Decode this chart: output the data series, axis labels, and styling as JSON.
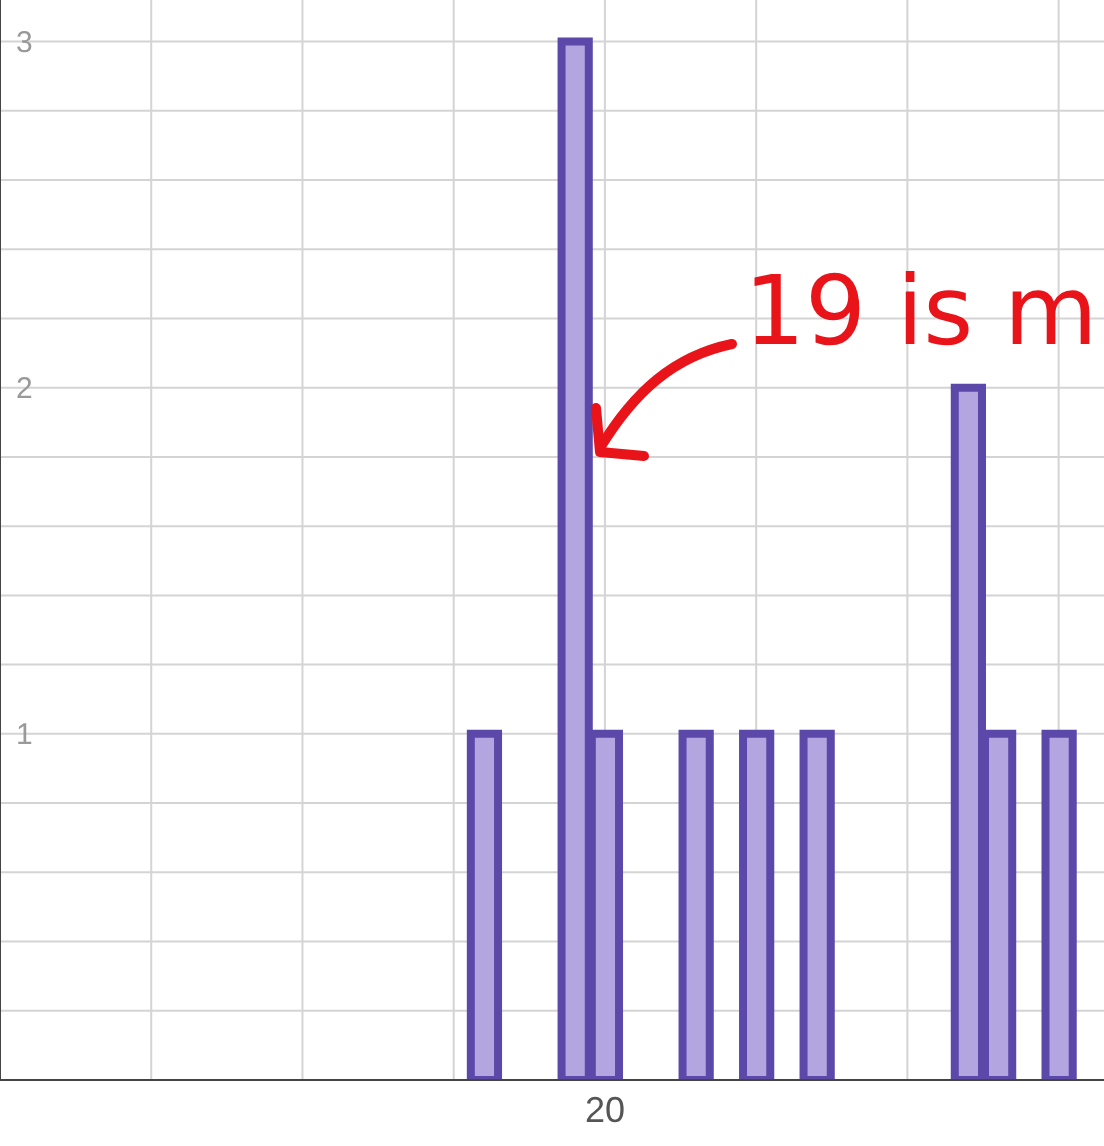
{
  "chart_data": {
    "type": "bar",
    "categories": [
      null,
      null,
      null,
      null,
      null,
      null,
      null,
      null,
      null,
      null,
      null,
      null,
      null,
      null,
      null,
      null,
      null,
      null,
      null,
      null,
      "20",
      null,
      null,
      null,
      null,
      null,
      null,
      null,
      null,
      null,
      null,
      null,
      null,
      null,
      null,
      null,
      null
    ],
    "values": [
      null,
      null,
      null,
      null,
      null,
      null,
      null,
      null,
      null,
      null,
      null,
      null,
      null,
      null,
      null,
      null,
      1,
      null,
      null,
      3,
      1,
      null,
      null,
      1,
      null,
      1,
      null,
      1,
      null,
      null,
      null,
      null,
      2,
      1,
      null,
      1,
      null
    ],
    "color": "#b3a6e0",
    "ylim": [
      0,
      3.12
    ],
    "yticks": [
      {
        "value": 0,
        "label": null
      },
      {
        "value": 0.2,
        "label": null
      },
      {
        "value": 0.4,
        "label": null
      },
      {
        "value": 0.6,
        "label": null
      },
      {
        "value": 0.8,
        "label": null
      },
      1,
      {
        "value": 1.2,
        "label": null
      },
      {
        "value": 1.4,
        "label": null
      },
      {
        "value": 1.6,
        "label": null
      },
      {
        "value": 1.8,
        "label": null
      },
      2,
      {
        "value": 2.2,
        "label": null
      },
      {
        "value": 2.4,
        "label": null
      },
      {
        "value": 2.6,
        "label": null
      },
      {
        "value": 2.8,
        "label": null
      },
      3
    ],
    "grid": true,
    "annotations": [
      "19 is m"
    ]
  }
}
